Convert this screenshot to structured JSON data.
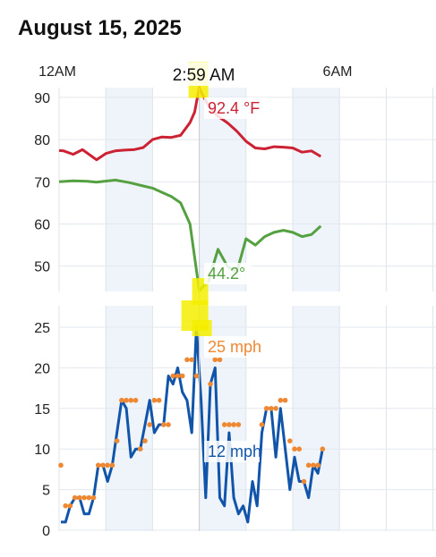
{
  "page": {
    "title": "August 15, 2025"
  },
  "chart_data": {
    "type": "line",
    "x_ticks": [
      "12AM",
      "6AM"
    ],
    "cursor": {
      "time": "2:59 AM",
      "hour": 3.0
    },
    "top": {
      "ylim": [
        44,
        93
      ],
      "yticks": [
        50,
        60,
        70,
        80,
        90
      ],
      "series": [
        {
          "key": "temp",
          "color": "#cc2233",
          "x": [
            0.0,
            0.1,
            0.3,
            0.5,
            0.8,
            1.0,
            1.2,
            1.4,
            1.6,
            1.8,
            2.0,
            2.2,
            2.4,
            2.6,
            2.8,
            2.9,
            3.0,
            3.05,
            3.2,
            3.4,
            3.6,
            3.8,
            4.0,
            4.2,
            4.4,
            4.6,
            4.8,
            5.0,
            5.2,
            5.4,
            5.6
          ],
          "y": [
            77.4,
            77.3,
            76.5,
            77.6,
            75.2,
            76.7,
            77.3,
            77.5,
            77.6,
            78.1,
            80.0,
            80.6,
            80.5,
            81.0,
            84.0,
            86.5,
            92.4,
            91.0,
            88.0,
            85.5,
            84.0,
            82.0,
            79.6,
            78.0,
            77.8,
            78.3,
            78.2,
            78.0,
            77.0,
            77.3,
            76.0
          ]
        },
        {
          "key": "dew",
          "color": "#55a040",
          "x": [
            0.0,
            0.3,
            0.6,
            0.8,
            1.2,
            1.5,
            1.8,
            2.0,
            2.2,
            2.4,
            2.6,
            2.8,
            3.0,
            3.2,
            3.4,
            3.6,
            3.8,
            4.0,
            4.2,
            4.4,
            4.6,
            4.8,
            5.0,
            5.2,
            5.4,
            5.6
          ],
          "y": [
            70.0,
            70.2,
            70.1,
            69.9,
            70.4,
            69.8,
            69.0,
            68.5,
            67.5,
            66.5,
            65.0,
            60.0,
            44.2,
            46.5,
            54.0,
            50.0,
            48.5,
            56.5,
            55.0,
            57.0,
            58.0,
            58.5,
            58.0,
            57.0,
            57.5,
            59.5
          ]
        }
      ],
      "labels": [
        {
          "key": "temp",
          "text": "92.4 °F",
          "color": "#cc2233"
        },
        {
          "key": "dew",
          "text": "44.2°",
          "color": "#55a040"
        }
      ]
    },
    "bottom": {
      "ylim": [
        0,
        26
      ],
      "yticks": [
        0,
        5,
        10,
        15,
        20,
        25
      ],
      "wind": {
        "color": "#1155aa",
        "values": [
          1,
          1,
          3,
          4,
          4,
          2,
          2,
          4,
          8,
          8,
          6,
          8,
          12,
          16,
          15,
          9,
          10,
          10,
          13,
          16,
          12,
          13,
          13,
          19,
          18,
          20,
          17,
          16,
          12,
          25,
          16,
          4,
          18,
          20,
          4,
          3,
          12,
          4,
          2,
          3,
          1,
          6,
          3,
          12,
          15,
          15,
          9,
          15,
          10,
          5,
          9,
          6,
          6,
          4,
          8,
          7,
          10
        ]
      },
      "gust": {
        "color": "#ee8833",
        "values": [
          8,
          3,
          3,
          4,
          4,
          4,
          4,
          4,
          8,
          8,
          8,
          8,
          11,
          16,
          16,
          16,
          16,
          10,
          11,
          13,
          16,
          16,
          13,
          13,
          19,
          19,
          19,
          21,
          21,
          19,
          25,
          25,
          18,
          21,
          21,
          13,
          13,
          13,
          13,
          0,
          0,
          0,
          0,
          13,
          15,
          15,
          15,
          16,
          16,
          11,
          10,
          10,
          6,
          8,
          8,
          8,
          10
        ]
      },
      "labels": [
        {
          "key": "gust",
          "text": "25 mph",
          "color": "#ee8833"
        },
        {
          "key": "wind",
          "text": "12 mph",
          "color": "#1155aa"
        }
      ]
    }
  }
}
